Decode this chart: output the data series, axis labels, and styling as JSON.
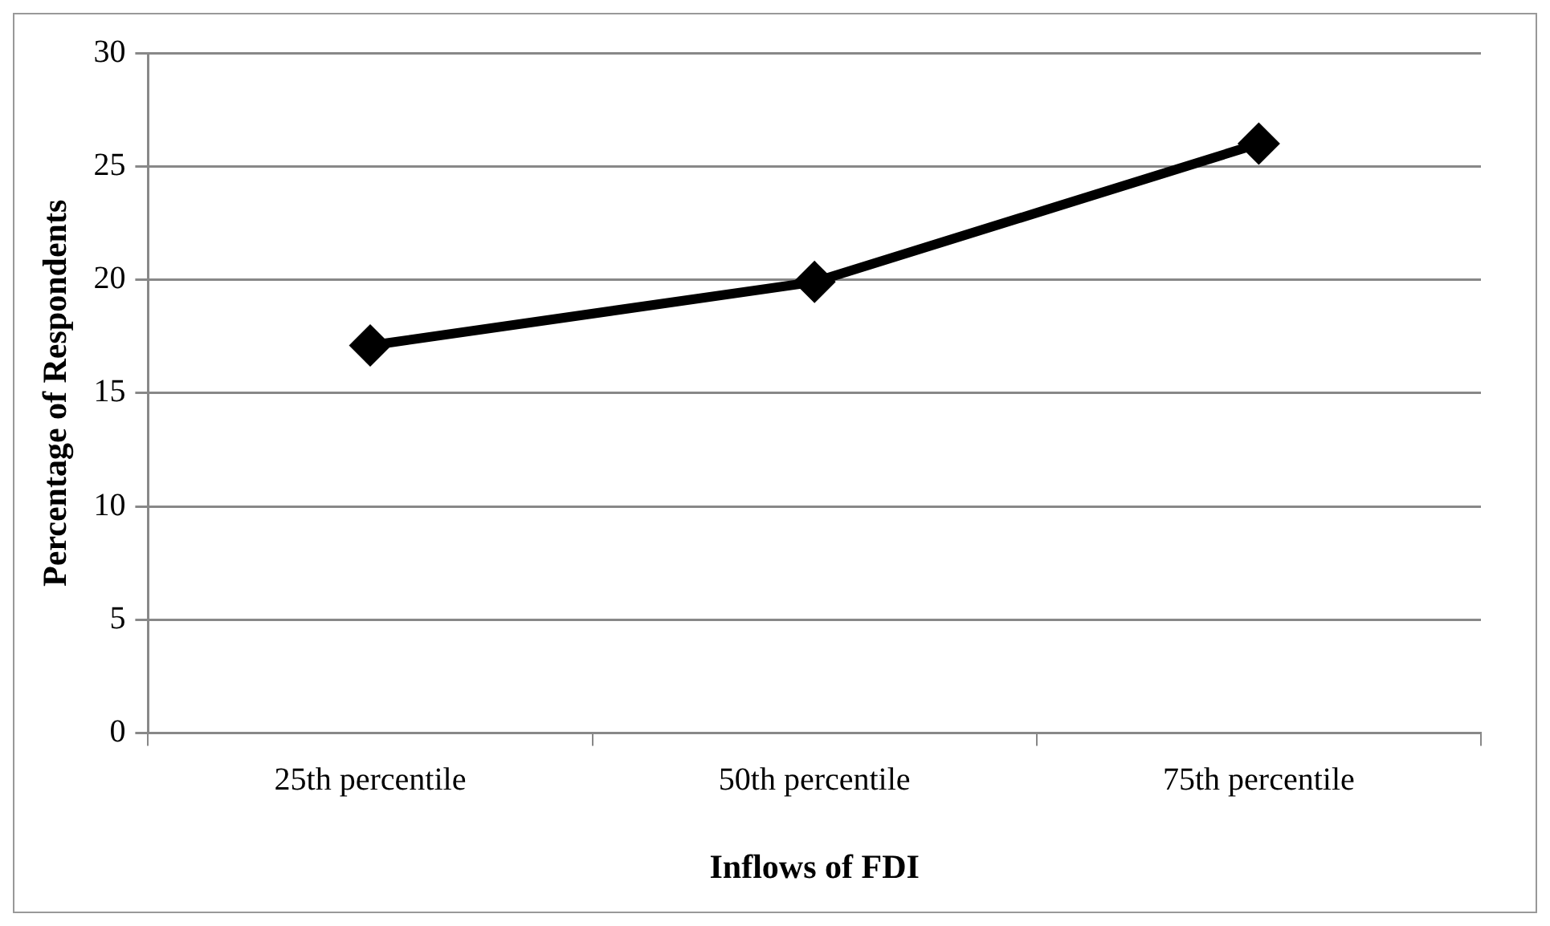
{
  "chart_data": {
    "type": "line",
    "xlabel": "Inflows of FDI",
    "ylabel": "Percentage of Respondents",
    "categories": [
      "25th percentile",
      "50th percentile",
      "75th percentile"
    ],
    "series": [
      {
        "color": "#000000",
        "values": [
          17.1,
          19.9,
          26.0
        ]
      }
    ],
    "ylim": [
      0,
      30
    ],
    "yticks": [
      0,
      5,
      10,
      15,
      20,
      25,
      30
    ],
    "grid": "y",
    "legend": false,
    "marker": "diamond",
    "line_style": "solid"
  }
}
